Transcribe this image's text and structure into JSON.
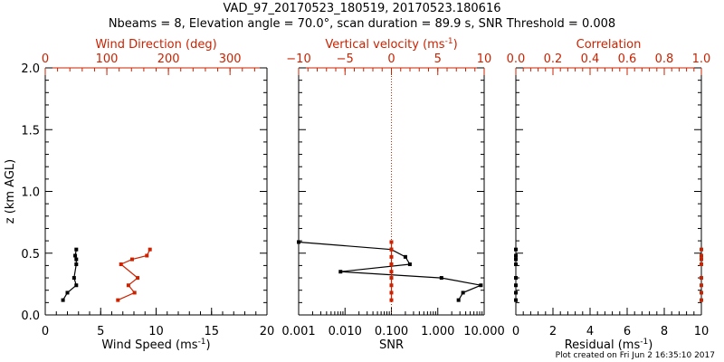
{
  "title": {
    "line1": "VAD_97_20170523_180519, 20170523.180616",
    "line2": "Nbeams = 8, Elevation angle = 70.0°, scan duration = 89.9 s, SNR Threshold = 0.008"
  },
  "footer": "Plot created on Fri Jun  2 16:35:10 2017",
  "colors": {
    "axis": "#000000",
    "accent": "#cc2200",
    "ref_line": "#cc2200"
  },
  "chart_data": [
    {
      "type": "line",
      "panel": "wind",
      "ylabel": "z (km AGL)",
      "ylim": [
        0,
        2.0
      ],
      "yticks": [
        0.0,
        0.5,
        1.0,
        1.5,
        2.0
      ],
      "ytick_labels": [
        "0.0",
        "0.5",
        "1.0",
        "1.5",
        "2.0"
      ],
      "xlabel_bottom": "Wind Speed (ms",
      "xlabel_bottom_sup": "-1",
      "xlabel_bottom_tail": ")",
      "xlim_bottom": [
        0,
        20
      ],
      "xticks_bottom": [
        0,
        5,
        10,
        15,
        20
      ],
      "xtick_labels_bottom": [
        "0",
        "5",
        "10",
        "15",
        "20"
      ],
      "xlabel_top": "Wind Direction (deg)",
      "xlim_top": [
        0,
        360
      ],
      "xticks_top": [
        0,
        100,
        200,
        300
      ],
      "xtick_labels_top": [
        "0",
        "100",
        "200",
        "300"
      ],
      "series": [
        {
          "name": "Wind Speed",
          "axis": "bottom",
          "color": "#000000",
          "x": [
            1.6,
            2.0,
            2.8,
            2.6,
            2.8,
            2.8,
            2.7,
            2.8
          ],
          "z": [
            0.12,
            0.18,
            0.24,
            0.3,
            0.41,
            0.45,
            0.48,
            0.53
          ]
        },
        {
          "name": "Wind Direction",
          "axis": "top",
          "color": "#cc2200",
          "x": [
            118,
            145,
            135,
            150,
            123,
            141,
            165,
            170
          ],
          "z": [
            0.12,
            0.18,
            0.24,
            0.3,
            0.41,
            0.45,
            0.48,
            0.53
          ]
        }
      ]
    },
    {
      "type": "line",
      "panel": "snr",
      "ylim": [
        0,
        2.0
      ],
      "xlabel_bottom": "SNR",
      "xscale_bottom": "log",
      "xlim_bottom": [
        0.001,
        10
      ],
      "xticks_bottom": [
        0.001,
        0.01,
        0.1,
        1,
        10
      ],
      "xtick_labels_bottom": [
        "0.001",
        "0.010",
        "0.100",
        "1.000",
        "10.000"
      ],
      "xlabel_top": "Vertical velocity (ms",
      "xlabel_top_sup": "-1",
      "xlabel_top_tail": ")",
      "xlim_top": [
        -10,
        10
      ],
      "xticks_top": [
        -10,
        -5,
        0,
        5,
        10
      ],
      "xtick_labels_top": [
        "−10",
        "−5",
        "0",
        "5",
        "10"
      ],
      "reference_line_top": 0,
      "series": [
        {
          "name": "SNR",
          "axis": "bottom",
          "color": "#000000",
          "x": [
            2.8,
            3.5,
            8.5,
            1.2,
            0.008,
            0.25,
            0.2,
            0.1,
            0.001
          ],
          "z": [
            0.12,
            0.18,
            0.24,
            0.3,
            0.35,
            0.41,
            0.47,
            0.53,
            0.59
          ]
        },
        {
          "name": "Vertical velocity",
          "axis": "top",
          "color": "#cc2200",
          "x": [
            0,
            0,
            0,
            0,
            0,
            0,
            0,
            0,
            0
          ],
          "z": [
            0.12,
            0.18,
            0.24,
            0.3,
            0.35,
            0.41,
            0.47,
            0.53,
            0.59
          ]
        }
      ]
    },
    {
      "type": "scatter",
      "panel": "residual",
      "ylim": [
        0,
        2.0
      ],
      "xlabel_bottom": "Residual (ms",
      "xlabel_bottom_sup": "-1",
      "xlabel_bottom_tail": ")",
      "xlim_bottom": [
        0,
        10
      ],
      "xticks_bottom": [
        0,
        2,
        4,
        6,
        8,
        10
      ],
      "xtick_labels_bottom": [
        "0",
        "2",
        "4",
        "6",
        "8",
        "10"
      ],
      "xlabel_top": "Correlation",
      "xlim_top": [
        0,
        1
      ],
      "xticks_top": [
        0,
        0.2,
        0.4,
        0.6,
        0.8,
        1.0
      ],
      "xtick_labels_top": [
        "0.0",
        "0.2",
        "0.4",
        "0.6",
        "0.8",
        "1.0"
      ],
      "series": [
        {
          "name": "Residual",
          "axis": "bottom",
          "color": "#000000",
          "x": [
            0,
            0,
            0,
            0,
            0,
            0,
            0,
            0
          ],
          "z": [
            0.12,
            0.18,
            0.24,
            0.3,
            0.41,
            0.45,
            0.48,
            0.53
          ]
        },
        {
          "name": "Correlation",
          "axis": "top",
          "color": "#cc2200",
          "x": [
            1,
            1,
            1,
            1,
            1,
            1,
            1,
            1
          ],
          "z": [
            0.12,
            0.18,
            0.24,
            0.3,
            0.41,
            0.45,
            0.48,
            0.53
          ]
        }
      ]
    }
  ]
}
